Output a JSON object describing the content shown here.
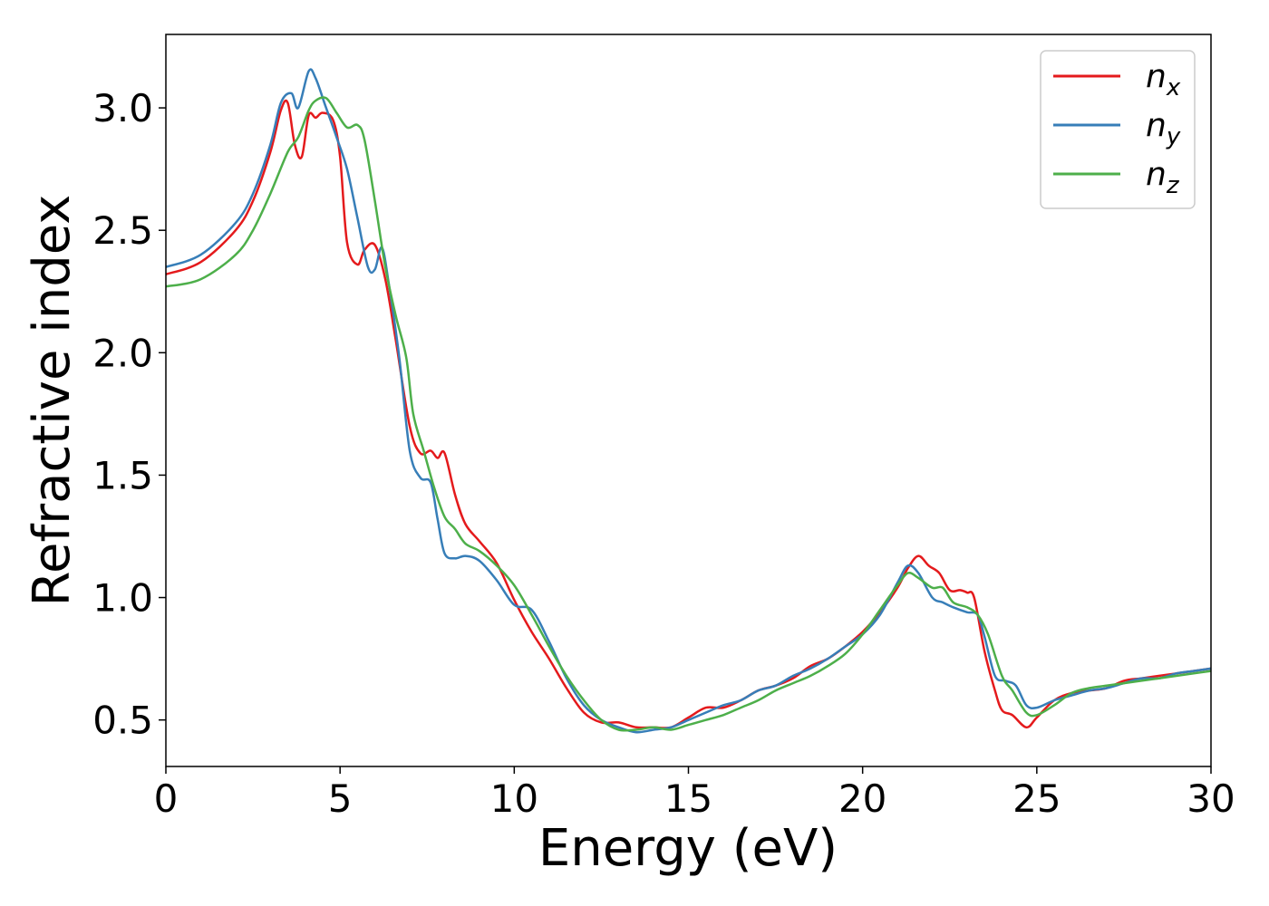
{
  "chart_data": {
    "type": "line",
    "title": "",
    "xlabel": "Energy (eV)",
    "ylabel": "Refractive index",
    "xlim": [
      0,
      30
    ],
    "ylim": [
      0.31,
      3.3
    ],
    "xticks": [
      0,
      5,
      10,
      15,
      20,
      25,
      30
    ],
    "yticks": [
      0.5,
      1.0,
      1.5,
      2.0,
      2.5,
      3.0
    ],
    "xtick_labels": [
      "0",
      "5",
      "10",
      "15",
      "20",
      "25",
      "30"
    ],
    "ytick_labels": [
      "0.5",
      "1.0",
      "1.5",
      "2.0",
      "2.5",
      "3.0"
    ],
    "grid": false,
    "legend_position": "top-right",
    "series": [
      {
        "name": "n",
        "subscript": "x",
        "color": "#e41a1c",
        "x": [
          0,
          1,
          2,
          2.5,
          3,
          3.3,
          3.5,
          3.7,
          3.9,
          4.1,
          4.3,
          4.5,
          4.8,
          5.0,
          5.2,
          5.5,
          5.7,
          6.0,
          6.3,
          6.6,
          7.0,
          7.3,
          7.6,
          7.8,
          8.0,
          8.3,
          8.6,
          9.0,
          9.5,
          10.0,
          10.5,
          11.0,
          11.5,
          12.0,
          12.5,
          13.0,
          13.5,
          14.0,
          14.5,
          15.0,
          15.5,
          16.0,
          16.5,
          17.0,
          17.5,
          18.0,
          18.5,
          19.0,
          19.5,
          20.0,
          20.5,
          21.0,
          21.3,
          21.6,
          21.9,
          22.2,
          22.5,
          22.8,
          23.0,
          23.2,
          23.5,
          23.8,
          24.0,
          24.3,
          24.7,
          25.0,
          25.5,
          26.0,
          26.5,
          27.0,
          27.5,
          28.0,
          28.5,
          29.0,
          29.5,
          30.0
        ],
        "y": [
          2.32,
          2.37,
          2.5,
          2.62,
          2.82,
          2.99,
          3.02,
          2.85,
          2.8,
          2.97,
          2.96,
          2.98,
          2.95,
          2.8,
          2.45,
          2.36,
          2.42,
          2.44,
          2.3,
          2.05,
          1.7,
          1.59,
          1.6,
          1.57,
          1.59,
          1.42,
          1.3,
          1.23,
          1.14,
          0.99,
          0.86,
          0.75,
          0.63,
          0.53,
          0.49,
          0.49,
          0.47,
          0.47,
          0.47,
          0.51,
          0.55,
          0.55,
          0.58,
          0.62,
          0.64,
          0.67,
          0.72,
          0.75,
          0.8,
          0.86,
          0.94,
          1.04,
          1.12,
          1.17,
          1.13,
          1.1,
          1.03,
          1.03,
          1.02,
          1.0,
          0.78,
          0.62,
          0.54,
          0.52,
          0.47,
          0.51,
          0.58,
          0.61,
          0.62,
          0.63,
          0.66,
          0.67,
          0.68,
          0.69,
          0.7,
          0.71
        ]
      },
      {
        "name": "n",
        "subscript": "y",
        "color": "#377eb8",
        "x": [
          0,
          1,
          2,
          2.5,
          3,
          3.3,
          3.6,
          3.8,
          4.1,
          4.3,
          4.6,
          4.9,
          5.2,
          5.5,
          5.8,
          6.0,
          6.2,
          6.4,
          6.7,
          7.0,
          7.3,
          7.6,
          7.8,
          8.0,
          8.3,
          8.6,
          9.0,
          9.5,
          10.0,
          10.5,
          11.0,
          11.5,
          12.0,
          12.5,
          13.0,
          13.5,
          14.0,
          14.5,
          15.0,
          15.5,
          16.0,
          16.5,
          17.0,
          17.5,
          18.0,
          18.5,
          19.0,
          19.5,
          20.0,
          20.5,
          21.0,
          21.3,
          21.6,
          22.0,
          22.3,
          22.6,
          23.0,
          23.3,
          23.5,
          23.8,
          24.1,
          24.4,
          24.7,
          25.0,
          25.5,
          26.0,
          26.5,
          27.0,
          27.5,
          28.0,
          28.5,
          29.0,
          29.5,
          30.0
        ],
        "y": [
          2.35,
          2.4,
          2.53,
          2.65,
          2.85,
          3.02,
          3.06,
          3.0,
          3.15,
          3.12,
          3.0,
          2.88,
          2.75,
          2.55,
          2.35,
          2.34,
          2.43,
          2.28,
          1.98,
          1.6,
          1.49,
          1.47,
          1.32,
          1.18,
          1.16,
          1.17,
          1.15,
          1.07,
          0.97,
          0.95,
          0.82,
          0.67,
          0.56,
          0.5,
          0.47,
          0.45,
          0.46,
          0.47,
          0.5,
          0.53,
          0.56,
          0.58,
          0.62,
          0.64,
          0.68,
          0.71,
          0.75,
          0.8,
          0.85,
          0.93,
          1.06,
          1.13,
          1.1,
          1.0,
          0.98,
          0.96,
          0.94,
          0.93,
          0.84,
          0.68,
          0.66,
          0.64,
          0.56,
          0.55,
          0.58,
          0.6,
          0.62,
          0.63,
          0.65,
          0.67,
          0.67,
          0.69,
          0.7,
          0.71
        ]
      },
      {
        "name": "n",
        "subscript": "z",
        "color": "#4daf4a",
        "x": [
          0,
          1,
          2,
          2.5,
          3,
          3.5,
          3.8,
          4.1,
          4.3,
          4.6,
          4.9,
          5.2,
          5.5,
          5.7,
          6.0,
          6.3,
          6.6,
          6.9,
          7.1,
          7.4,
          7.7,
          8.0,
          8.3,
          8.6,
          9.0,
          9.5,
          10.0,
          10.5,
          11.0,
          11.5,
          12.0,
          12.5,
          13.0,
          13.5,
          14.0,
          14.5,
          15.0,
          15.5,
          16.0,
          16.5,
          17.0,
          17.5,
          18.0,
          18.5,
          19.0,
          19.5,
          20.0,
          20.5,
          21.0,
          21.3,
          21.6,
          22.0,
          22.3,
          22.6,
          23.0,
          23.3,
          23.6,
          24.0,
          24.3,
          24.7,
          25.0,
          25.5,
          26.0,
          26.5,
          27.0,
          27.5,
          28.0,
          28.5,
          29.0,
          29.5,
          30.0
        ],
        "y": [
          2.27,
          2.3,
          2.4,
          2.5,
          2.65,
          2.82,
          2.88,
          2.99,
          3.03,
          3.04,
          2.98,
          2.92,
          2.93,
          2.87,
          2.62,
          2.35,
          2.15,
          1.98,
          1.75,
          1.6,
          1.45,
          1.33,
          1.28,
          1.22,
          1.19,
          1.13,
          1.05,
          0.93,
          0.8,
          0.68,
          0.58,
          0.5,
          0.46,
          0.46,
          0.47,
          0.46,
          0.48,
          0.5,
          0.52,
          0.55,
          0.58,
          0.62,
          0.65,
          0.68,
          0.72,
          0.77,
          0.85,
          0.95,
          1.05,
          1.1,
          1.08,
          1.04,
          1.04,
          0.98,
          0.96,
          0.93,
          0.85,
          0.68,
          0.62,
          0.53,
          0.52,
          0.56,
          0.61,
          0.63,
          0.64,
          0.65,
          0.66,
          0.67,
          0.68,
          0.69,
          0.7
        ]
      }
    ]
  }
}
